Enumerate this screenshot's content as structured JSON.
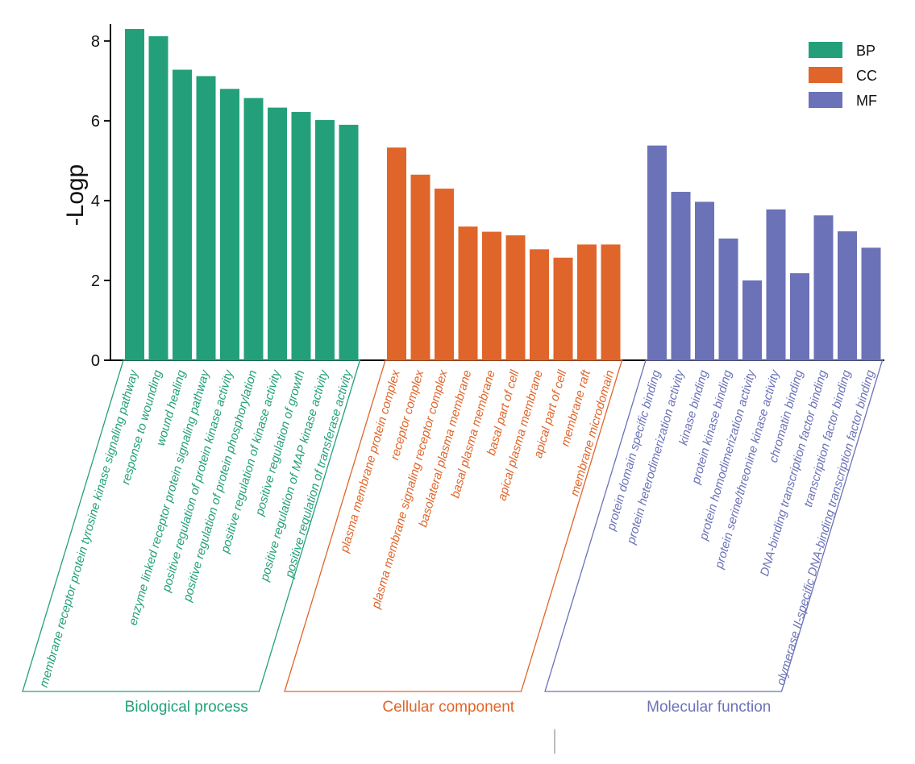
{
  "chart_data": {
    "type": "bar",
    "ylabel": "-Logp",
    "xlabel": "",
    "ylim": [
      0,
      8.3
    ],
    "yticks": [
      0,
      2,
      4,
      6,
      8
    ],
    "legend_position": "top-right",
    "legend": [
      {
        "key": "BP",
        "label": "BP",
        "color": "#23A07A"
      },
      {
        "key": "CC",
        "label": "CC",
        "color": "#E0652A"
      },
      {
        "key": "MF",
        "label": "MF",
        "color": "#6B72B8"
      }
    ],
    "groups": [
      {
        "key": "BP",
        "name": "Biological process",
        "color": "#23A07A",
        "categories": [
          "membrane receptor protein tyrosine kinase signaling pathway",
          "response to wounding",
          "wound healing",
          "enzyme linked receptor protein signaling pathway",
          "positive regulation of protein kinase activity",
          "positive regulation of protein phosphorylation",
          "positive regulation of kinase activity",
          "positive regulation of growth",
          "positive regulation of MAP kinase activity",
          "positive regulation of transferase activity"
        ],
        "values": [
          8.3,
          8.12,
          7.28,
          7.12,
          6.8,
          6.57,
          6.33,
          6.22,
          6.02,
          5.9
        ]
      },
      {
        "key": "CC",
        "name": "Cellular component",
        "color": "#E0652A",
        "categories": [
          "plasma membrane protein complex",
          "receptor complex",
          "plasma membrane signaling receptor complex",
          "basolateral plasma membrane",
          "basal plasma membrane",
          "basal part of cell",
          "apical plasma membrane",
          "apical part of cell",
          "membrane raft",
          "membrane microdomain"
        ],
        "values": [
          5.33,
          4.65,
          4.3,
          3.35,
          3.22,
          3.13,
          2.78,
          2.57,
          2.9,
          2.9
        ]
      },
      {
        "key": "MF",
        "name": "Molecular function",
        "color": "#6B72B8",
        "categories": [
          "protein domain specific binding",
          "protein heterodimerization activity",
          "kinase binding",
          "protein kinase binding",
          "protein homodimerization activity",
          "protein serine/threonine kinase activity",
          "chromatin binding",
          "DNA-binding transcription factor binding",
          "transcription factor binding",
          "olymerase II-specific DNA-binding transcription factor binding"
        ],
        "values": [
          5.38,
          4.22,
          3.97,
          3.05,
          2.0,
          3.78,
          2.18,
          3.63,
          3.23,
          2.82
        ]
      }
    ]
  }
}
